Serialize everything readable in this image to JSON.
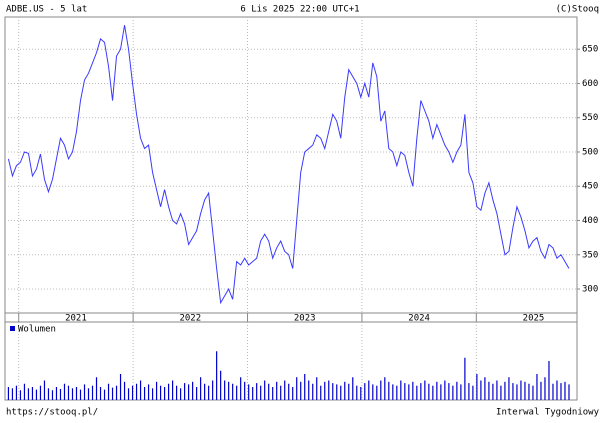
{
  "header": {
    "left": "ADBE.US - 5 lat",
    "center": "6 Lis 2025 22:00 UTC+1",
    "right": "(C)Stooq"
  },
  "footer": {
    "left": "https://stooq.pl/",
    "right": "Interwal Tygodniowy"
  },
  "chart_data": [
    {
      "type": "line",
      "color": "#3a3aff",
      "x": [
        2020.91,
        2020.945,
        2020.98,
        2021.015,
        2021.05,
        2021.085,
        2021.12,
        2021.155,
        2021.19,
        2021.225,
        2021.26,
        2021.295,
        2021.33,
        2021.365,
        2021.4,
        2021.435,
        2021.47,
        2021.505,
        2021.54,
        2021.575,
        2021.61,
        2021.645,
        2021.68,
        2021.715,
        2021.75,
        2021.785,
        2021.82,
        2021.855,
        2021.89,
        2021.925,
        2021.96,
        2021.995,
        2022.03,
        2022.065,
        2022.1,
        2022.135,
        2022.17,
        2022.205,
        2022.24,
        2022.275,
        2022.31,
        2022.345,
        2022.38,
        2022.415,
        2022.45,
        2022.485,
        2022.52,
        2022.555,
        2022.59,
        2022.625,
        2022.66,
        2022.695,
        2022.73,
        2022.765,
        2022.8,
        2022.835,
        2022.87,
        2022.905,
        2022.94,
        2022.975,
        2023.01,
        2023.045,
        2023.08,
        2023.115,
        2023.15,
        2023.185,
        2023.22,
        2023.255,
        2023.29,
        2023.325,
        2023.36,
        2023.395,
        2023.43,
        2023.465,
        2023.5,
        2023.535,
        2023.57,
        2023.605,
        2023.64,
        2023.675,
        2023.71,
        2023.745,
        2023.78,
        2023.815,
        2023.85,
        2023.885,
        2023.92,
        2023.955,
        2023.99,
        2024.025,
        2024.06,
        2024.095,
        2024.13,
        2024.165,
        2024.2,
        2024.235,
        2024.27,
        2024.305,
        2024.34,
        2024.375,
        2024.41,
        2024.445,
        2024.48,
        2024.515,
        2024.55,
        2024.585,
        2024.62,
        2024.655,
        2024.69,
        2024.725,
        2024.76,
        2024.795,
        2024.83,
        2024.865,
        2024.9,
        2024.935,
        2024.97,
        2025.005,
        2025.04,
        2025.075,
        2025.11,
        2025.145,
        2025.18,
        2025.215,
        2025.25,
        2025.285,
        2025.32,
        2025.355,
        2025.39,
        2025.425,
        2025.46,
        2025.495,
        2025.53,
        2025.565,
        2025.6,
        2025.635,
        2025.67,
        2025.705,
        2025.74,
        2025.775,
        2025.81
      ],
      "values": [
        490,
        465,
        480,
        485,
        500,
        498,
        465,
        475,
        497,
        460,
        442,
        460,
        490,
        520,
        510,
        490,
        500,
        530,
        575,
        605,
        615,
        630,
        645,
        665,
        660,
        625,
        575,
        640,
        650,
        685,
        650,
        600,
        555,
        520,
        505,
        510,
        470,
        445,
        420,
        445,
        420,
        400,
        395,
        410,
        395,
        365,
        375,
        385,
        410,
        430,
        440,
        385,
        330,
        280,
        290,
        300,
        285,
        340,
        335,
        345,
        335,
        340,
        345,
        370,
        380,
        370,
        345,
        360,
        370,
        355,
        350,
        330,
        400,
        470,
        500,
        505,
        510,
        525,
        520,
        505,
        530,
        555,
        545,
        520,
        580,
        620,
        610,
        600,
        580,
        600,
        580,
        630,
        610,
        545,
        560,
        505,
        500,
        480,
        500,
        495,
        470,
        450,
        520,
        575,
        560,
        545,
        520,
        540,
        525,
        510,
        500,
        485,
        500,
        510,
        555,
        470,
        455,
        420,
        415,
        440,
        455,
        430,
        410,
        380,
        350,
        355,
        390,
        420,
        405,
        385,
        360,
        370,
        375,
        355,
        345,
        365,
        360,
        345,
        350,
        340,
        330
      ],
      "xlim": [
        2020.88,
        2025.88
      ],
      "ylim": [
        265,
        697
      ],
      "yticks": [
        300,
        350,
        400,
        450,
        500,
        550,
        600,
        650
      ],
      "xticks": [
        {
          "value": 2021.5,
          "label": "2021"
        },
        {
          "value": 2022.5,
          "label": "2022"
        },
        {
          "value": 2023.5,
          "label": "2023"
        },
        {
          "value": 2024.5,
          "label": "2024"
        },
        {
          "value": 2025.5,
          "label": "2025"
        }
      ],
      "xgrid": [
        2021,
        2022,
        2023,
        2024,
        2025
      ],
      "grid": true
    },
    {
      "type": "bar",
      "ylim": [
        0,
        100
      ],
      "series": [
        {
          "name": "Wolumen",
          "color": "#0000cc",
          "values": [
            20,
            18,
            22,
            15,
            25,
            18,
            20,
            16,
            22,
            30,
            18,
            15,
            20,
            17,
            25,
            22,
            18,
            20,
            16,
            24,
            18,
            22,
            35,
            20,
            16,
            25,
            19,
            22,
            40,
            28,
            18,
            22,
            25,
            30,
            20,
            24,
            18,
            28,
            22,
            20,
            25,
            30,
            22,
            18,
            26,
            24,
            28,
            20,
            35,
            25,
            22,
            30,
            75,
            45,
            30,
            28,
            25,
            22,
            35,
            28,
            24,
            20,
            26,
            22,
            30,
            25,
            20,
            28,
            22,
            30,
            25,
            20,
            35,
            28,
            40,
            30,
            25,
            35,
            22,
            28,
            30,
            26,
            24,
            22,
            28,
            25,
            35,
            22,
            20,
            26,
            30,
            24,
            22,
            30,
            35,
            28,
            24,
            22,
            30,
            26,
            24,
            28,
            22,
            26,
            30,
            25,
            22,
            28,
            24,
            30,
            26,
            22,
            28,
            24,
            65,
            26,
            22,
            40,
            30,
            35,
            28,
            25,
            30,
            22,
            28,
            35,
            26,
            24,
            30,
            28,
            25,
            22,
            40,
            28,
            35,
            60,
            25,
            30,
            26,
            28,
            24
          ]
        }
      ]
    }
  ]
}
